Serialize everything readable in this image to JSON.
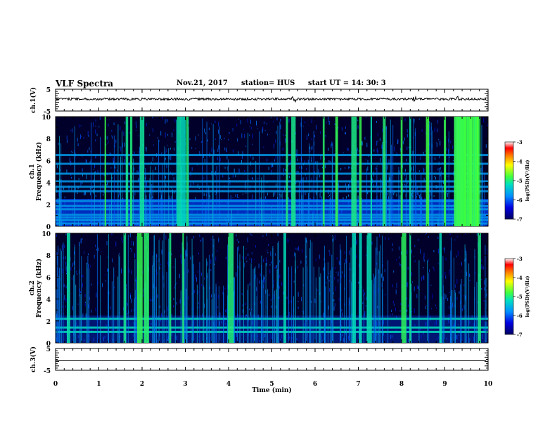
{
  "header": {
    "title": "VLF Spectra",
    "date": "Nov.21, 2017",
    "station": "station= HUS",
    "start_time": "start  UT =   14: 30: 3"
  },
  "chart_data": [
    {
      "type": "line",
      "panel": "ch1-waveform",
      "ylabel": "ch.1(V)",
      "ylim": [
        -5,
        5
      ],
      "yticks": [
        "5",
        "-5"
      ],
      "xlim": [
        0,
        10
      ],
      "level": 0,
      "description_values": "noisy waveform around 0 V with amplitude about 0.5 V, small spikes near 5.5, 8.3 and 9.3 min"
    },
    {
      "type": "heatmap",
      "panel": "ch1-spectrogram",
      "ylabel": "Frequency (kHz)",
      "channel_label": "ch.1",
      "ylim": [
        0,
        10
      ],
      "yticks": [
        "0",
        "2",
        "4",
        "6",
        "8",
        "10"
      ],
      "xlim": [
        0,
        10
      ],
      "colorbar": {
        "label": "log(PSD)(V²/Hz)",
        "range": [
          -7,
          -3
        ],
        "ticks": [
          "-3",
          "-4",
          "-5",
          "-6",
          "-7"
        ]
      },
      "horizontal_lines_khz": [
        0.25,
        0.55,
        0.8,
        1.05,
        1.55,
        1.85,
        2.3,
        3.2,
        3.6,
        4.1,
        4.8,
        5.7,
        6.5
      ],
      "burst_times_min": [
        1.15,
        1.65,
        1.75,
        2.0,
        2.85,
        2.95,
        3.05,
        5.35,
        5.5,
        6.2,
        6.5,
        6.9,
        7.05,
        7.3,
        7.6,
        8.0,
        8.2,
        8.6,
        9.0,
        9.3,
        9.45,
        9.6,
        9.75
      ]
    },
    {
      "type": "heatmap",
      "panel": "ch2-spectrogram",
      "ylabel": "Frequency (kHz)",
      "channel_label": "ch.2",
      "ylim": [
        0,
        10
      ],
      "yticks": [
        "0",
        "2",
        "4",
        "6",
        "8",
        "10"
      ],
      "xlim": [
        0,
        10
      ],
      "colorbar": {
        "label": "log(PSD)(V²/Hz)",
        "range": [
          -7,
          -3
        ],
        "ticks": [
          "-3",
          "-4",
          "-5",
          "-6",
          "-7"
        ]
      },
      "horizontal_lines_khz": [
        1.0,
        1.4,
        2.2
      ],
      "burst_times_min": [
        0.3,
        1.6,
        1.95,
        2.1,
        2.65,
        2.95,
        4.05,
        5.3,
        6.9,
        7.05,
        7.25,
        8.05,
        8.2,
        8.9,
        9.8
      ]
    },
    {
      "type": "line",
      "panel": "ch3-waveform",
      "ylabel": "ch.3(V)",
      "ylim": [
        -5,
        5
      ],
      "yticks": [
        "5",
        "-5"
      ],
      "xlim": [
        0,
        10
      ],
      "level": 0,
      "xlabel": "Time (min)",
      "xticks": [
        "0",
        "1",
        "2",
        "3",
        "4",
        "5",
        "6",
        "7",
        "8",
        "9",
        "10"
      ]
    }
  ]
}
